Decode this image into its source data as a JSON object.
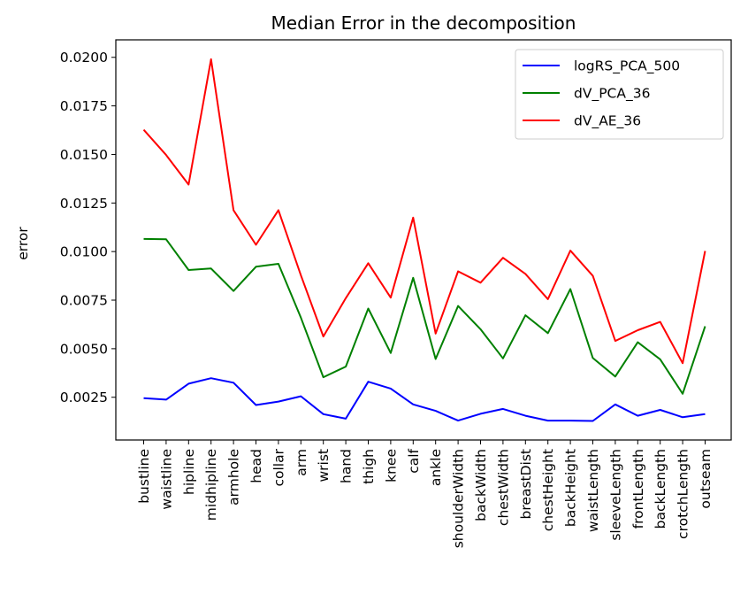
{
  "chart_data": {
    "type": "line",
    "title": "Median Error in the decomposition",
    "xlabel": "",
    "ylabel": "error",
    "categories": [
      "bustline",
      "waistline",
      "hipline",
      "midhipline",
      "armhole",
      "head",
      "collar",
      "arm",
      "wrist",
      "hand",
      "thigh",
      "knee",
      "calf",
      "ankle",
      "shoulderWidth",
      "backWidth",
      "chestWidth",
      "breastDist",
      "chestHeight",
      "backHeight",
      "waistLength",
      "sleeveLength",
      "frontLength",
      "backLength",
      "crotchLength",
      "outseam"
    ],
    "ylim": [
      0.0003,
      0.0209
    ],
    "yticks": [
      0.0025,
      0.005,
      0.0075,
      0.01,
      0.0125,
      0.015,
      0.0175,
      0.02
    ],
    "ytick_labels": [
      "0.0025",
      "0.0050",
      "0.0075",
      "0.0100",
      "0.0125",
      "0.0150",
      "0.0175",
      "0.0200"
    ],
    "grid": false,
    "legend_position": "top-right",
    "series": [
      {
        "name": "logRS_PCA_500",
        "color": "#0000ff",
        "values": [
          0.00245,
          0.00238,
          0.0032,
          0.00348,
          0.00325,
          0.0021,
          0.00228,
          0.00255,
          0.00163,
          0.0014,
          0.0033,
          0.00295,
          0.00213,
          0.0018,
          0.0013,
          0.00165,
          0.0019,
          0.00155,
          0.0013,
          0.0013,
          0.00128,
          0.00213,
          0.00155,
          0.00185,
          0.00147,
          0.00163
        ]
      },
      {
        "name": "dV_PCA_36",
        "color": "#008000",
        "values": [
          0.01065,
          0.01063,
          0.00905,
          0.00913,
          0.00797,
          0.00922,
          0.00937,
          0.0066,
          0.00353,
          0.00408,
          0.00707,
          0.00478,
          0.00865,
          0.00447,
          0.0072,
          0.006,
          0.0045,
          0.00672,
          0.0058,
          0.00807,
          0.00452,
          0.00357,
          0.00533,
          0.00445,
          0.00268,
          0.00615
        ]
      },
      {
        "name": "dV_AE_36",
        "color": "#ff0000",
        "values": [
          0.01627,
          0.01497,
          0.01345,
          0.0199,
          0.01213,
          0.01035,
          0.01213,
          0.00878,
          0.00563,
          0.0076,
          0.0094,
          0.00763,
          0.01175,
          0.00578,
          0.00898,
          0.0084,
          0.00968,
          0.00885,
          0.00755,
          0.01005,
          0.00875,
          0.0054,
          0.00595,
          0.00638,
          0.00425,
          0.01003
        ]
      }
    ]
  }
}
